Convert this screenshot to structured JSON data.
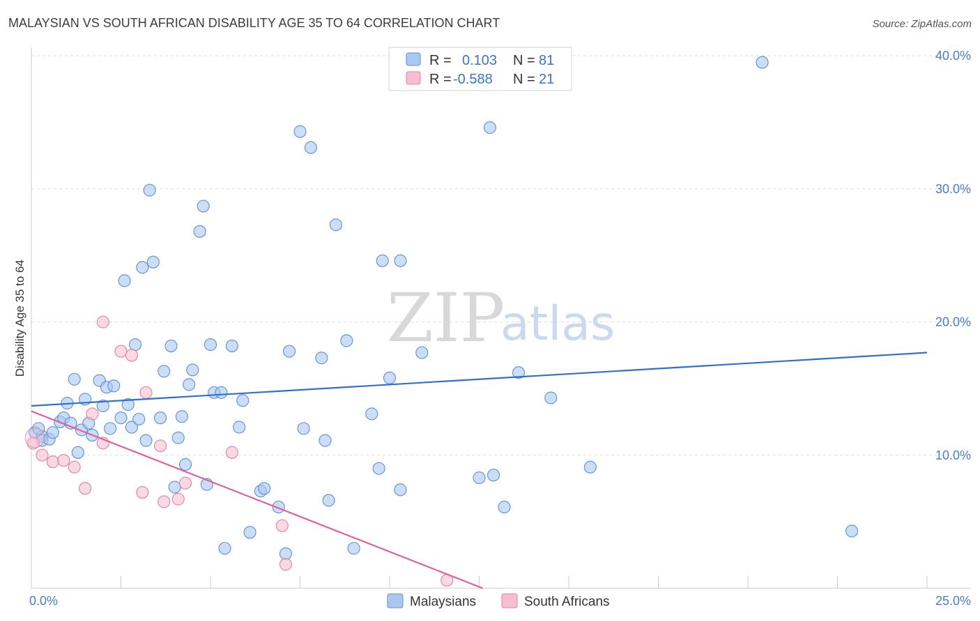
{
  "chart_data": {
    "type": "scatter",
    "title": "MALAYSIAN VS SOUTH AFRICAN DISABILITY AGE 35 TO 64 CORRELATION CHART",
    "source": "Source: ZipAtlas.com",
    "ylabel": "Disability Age 35 to 64",
    "xlabel": "",
    "xlim": [
      0,
      25
    ],
    "ylim": [
      0,
      40
    ],
    "x_tick_labels": [
      "0.0%",
      "25.0%"
    ],
    "y_tick_values": [
      10,
      20,
      30,
      40
    ],
    "y_tick_labels": [
      "10.0%",
      "20.0%",
      "30.0%",
      "40.0%"
    ],
    "watermark": {
      "zip": "ZIP",
      "atlas": "atlas"
    },
    "legend": {
      "rows": [
        {
          "r_label": "R =",
          "r_value": "0.103",
          "n_label": "N =",
          "n_value": "81"
        },
        {
          "r_label": "R =",
          "r_value": "-0.588",
          "n_label": "N =",
          "n_value": "21"
        }
      ]
    },
    "series": [
      {
        "name": "Malaysians",
        "color": "#a9c8f0",
        "stroke": "#5b8fd6",
        "trend_color": "#2f6fce",
        "trend": {
          "x": [
            0,
            25
          ],
          "y": [
            13.7,
            17.7
          ]
        },
        "points": [
          [
            0.1,
            11.7
          ],
          [
            0.3,
            11.4
          ],
          [
            0.3,
            11.1
          ],
          [
            0.5,
            11.2
          ],
          [
            0.6,
            11.7
          ],
          [
            0.8,
            12.5
          ],
          [
            0.9,
            12.8
          ],
          [
            1.0,
            13.9
          ],
          [
            1.1,
            12.4
          ],
          [
            1.2,
            15.7
          ],
          [
            1.3,
            10.2
          ],
          [
            1.4,
            11.9
          ],
          [
            1.5,
            14.2
          ],
          [
            1.6,
            12.4
          ],
          [
            1.7,
            11.5
          ],
          [
            1.9,
            15.6
          ],
          [
            2.0,
            13.7
          ],
          [
            2.1,
            15.1
          ],
          [
            2.2,
            12.0
          ],
          [
            2.3,
            15.2
          ],
          [
            2.5,
            12.8
          ],
          [
            2.6,
            23.1
          ],
          [
            2.7,
            13.8
          ],
          [
            2.8,
            12.1
          ],
          [
            2.9,
            18.3
          ],
          [
            3.0,
            12.7
          ],
          [
            3.1,
            24.1
          ],
          [
            3.2,
            11.1
          ],
          [
            3.3,
            29.9
          ],
          [
            3.4,
            24.5
          ],
          [
            3.6,
            12.8
          ],
          [
            3.7,
            16.3
          ],
          [
            3.9,
            18.2
          ],
          [
            4.0,
            7.6
          ],
          [
            4.1,
            11.3
          ],
          [
            4.2,
            12.9
          ],
          [
            4.3,
            9.3
          ],
          [
            4.4,
            15.3
          ],
          [
            4.5,
            16.4
          ],
          [
            4.7,
            26.8
          ],
          [
            4.8,
            28.7
          ],
          [
            4.9,
            7.8
          ],
          [
            5.0,
            18.3
          ],
          [
            5.1,
            14.7
          ],
          [
            5.3,
            14.7
          ],
          [
            5.4,
            3.0
          ],
          [
            5.6,
            18.2
          ],
          [
            5.8,
            12.1
          ],
          [
            5.9,
            14.1
          ],
          [
            6.1,
            4.2
          ],
          [
            6.4,
            7.3
          ],
          [
            6.5,
            7.5
          ],
          [
            6.9,
            6.1
          ],
          [
            7.1,
            2.6
          ],
          [
            7.2,
            17.8
          ],
          [
            7.5,
            34.3
          ],
          [
            7.6,
            12.0
          ],
          [
            7.8,
            33.1
          ],
          [
            8.1,
            17.3
          ],
          [
            8.2,
            11.1
          ],
          [
            8.3,
            6.6
          ],
          [
            8.5,
            27.3
          ],
          [
            8.8,
            18.6
          ],
          [
            9.0,
            3.0
          ],
          [
            9.5,
            13.1
          ],
          [
            9.7,
            9.0
          ],
          [
            9.8,
            24.6
          ],
          [
            10.0,
            15.8
          ],
          [
            10.3,
            7.4
          ],
          [
            10.3,
            24.6
          ],
          [
            10.9,
            17.7
          ],
          [
            12.5,
            8.3
          ],
          [
            12.8,
            34.6
          ],
          [
            12.9,
            8.5
          ],
          [
            13.2,
            6.1
          ],
          [
            13.6,
            16.2
          ],
          [
            14.5,
            14.3
          ],
          [
            15.6,
            9.1
          ],
          [
            20.4,
            39.5
          ],
          [
            22.9,
            4.3
          ],
          [
            0.2,
            12.0
          ]
        ]
      },
      {
        "name": "South Africans",
        "color": "#f5bfd0",
        "stroke": "#e77ea0",
        "trend_color": "#e0609a",
        "trend": {
          "x": [
            0,
            12.6
          ],
          "y": [
            13.3,
            0
          ]
        },
        "points": [
          [
            0.05,
            10.9
          ],
          [
            0.3,
            10.0
          ],
          [
            0.6,
            9.5
          ],
          [
            0.9,
            9.6
          ],
          [
            1.2,
            9.1
          ],
          [
            1.5,
            7.5
          ],
          [
            1.7,
            13.1
          ],
          [
            2.0,
            10.9
          ],
          [
            2.0,
            20.0
          ],
          [
            2.5,
            17.8
          ],
          [
            2.8,
            17.5
          ],
          [
            3.1,
            7.2
          ],
          [
            3.2,
            14.7
          ],
          [
            3.6,
            10.7
          ],
          [
            3.7,
            6.5
          ],
          [
            4.1,
            6.7
          ],
          [
            4.3,
            7.9
          ],
          [
            5.6,
            10.2
          ],
          [
            7.0,
            4.7
          ],
          [
            7.1,
            1.8
          ],
          [
            11.6,
            0.6
          ]
        ]
      }
    ]
  }
}
